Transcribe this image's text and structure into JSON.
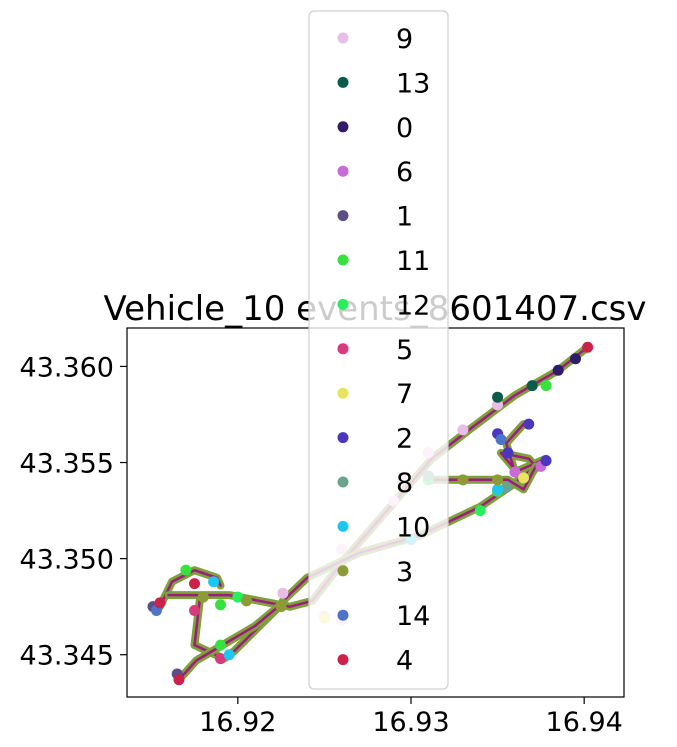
{
  "chart_data": {
    "type": "scatter",
    "title": "Vehicle_10 events_8601407.csv",
    "xlabel": "",
    "ylabel": "",
    "xlim": [
      16.9136,
      16.9423
    ],
    "ylim": [
      43.3428,
      43.362
    ],
    "xticks": [
      16.92,
      16.93,
      16.94
    ],
    "xtick_labels": [
      "16.92",
      "16.93",
      "16.94"
    ],
    "yticks": [
      43.345,
      43.35,
      43.355,
      43.36
    ],
    "ytick_labels": [
      "43.345",
      "43.350",
      "43.355",
      "43.360"
    ],
    "grid": false,
    "legend_position": "upper center",
    "series": [
      {
        "name": "9",
        "color": "#e8bde6",
        "points": [
          [
            16.9226,
            43.3482
          ],
          [
            16.926,
            43.3505
          ],
          [
            16.929,
            43.353
          ],
          [
            16.931,
            43.3555
          ],
          [
            16.933,
            43.3567
          ],
          [
            16.935,
            43.358
          ],
          [
            16.9295,
            43.3541
          ],
          [
            16.925,
            43.347
          ],
          [
            16.926,
            43.3468
          ]
        ]
      },
      {
        "name": "13",
        "color": "#0b5a4b",
        "points": [
          [
            16.935,
            43.3584
          ],
          [
            16.937,
            43.359
          ]
        ]
      },
      {
        "name": "0",
        "color": "#2e1c6b",
        "points": [
          [
            16.9385,
            43.3598
          ],
          [
            16.9395,
            43.3604
          ]
        ]
      },
      {
        "name": "6",
        "color": "#c86ad8",
        "points": [
          [
            16.936,
            43.3545
          ],
          [
            16.9375,
            43.3548
          ]
        ]
      },
      {
        "name": "1",
        "color": "#5b4e86",
        "points": [
          [
            16.9151,
            43.3475
          ],
          [
            16.9165,
            43.344
          ]
        ]
      },
      {
        "name": "11",
        "color": "#38e23c",
        "points": [
          [
            16.917,
            43.3494
          ],
          [
            16.919,
            43.3476
          ],
          [
            16.935,
            43.3535
          ],
          [
            16.9378,
            43.359
          ],
          [
            16.919,
            43.3455
          ]
        ]
      },
      {
        "name": "12",
        "color": "#27ee5d",
        "points": [
          [
            16.92,
            43.348
          ],
          [
            16.934,
            43.3525
          ],
          [
            16.931,
            43.3541
          ]
        ]
      },
      {
        "name": "5",
        "color": "#d93a7d",
        "points": [
          [
            16.9175,
            43.3473
          ],
          [
            16.919,
            43.3448
          ]
        ]
      },
      {
        "name": "7",
        "color": "#e8e45f",
        "points": [
          [
            16.9365,
            43.3542
          ],
          [
            16.925,
            43.3469
          ]
        ]
      },
      {
        "name": "2",
        "color": "#4b37bd",
        "points": [
          [
            16.935,
            43.3565
          ],
          [
            16.9368,
            43.357
          ],
          [
            16.9378,
            43.3551
          ],
          [
            16.9356,
            43.3555
          ]
        ]
      },
      {
        "name": "8",
        "color": "#6ba38e",
        "points": [
          [
            16.931,
            43.3543
          ],
          [
            16.9355,
            43.3537
          ]
        ]
      },
      {
        "name": "10",
        "color": "#20c6f2",
        "points": [
          [
            16.9186,
            43.3488
          ],
          [
            16.9195,
            43.345
          ],
          [
            16.93,
            43.351
          ],
          [
            16.935,
            43.3536
          ]
        ]
      },
      {
        "name": "3",
        "color": "#8e9a36",
        "points": [
          [
            16.918,
            43.348
          ],
          [
            16.9205,
            43.3478
          ],
          [
            16.9225,
            43.3475
          ],
          [
            16.933,
            43.3541
          ],
          [
            16.935,
            43.3541
          ]
        ]
      },
      {
        "name": "14",
        "color": "#4d74c9",
        "points": [
          [
            16.9153,
            43.3473
          ],
          [
            16.9352,
            43.3562
          ]
        ]
      },
      {
        "name": "4",
        "color": "#cc2148",
        "points": [
          [
            16.9155,
            43.3477
          ],
          [
            16.9166,
            43.3437
          ],
          [
            16.9175,
            43.3487
          ],
          [
            16.9402,
            43.361
          ]
        ]
      }
    ]
  }
}
